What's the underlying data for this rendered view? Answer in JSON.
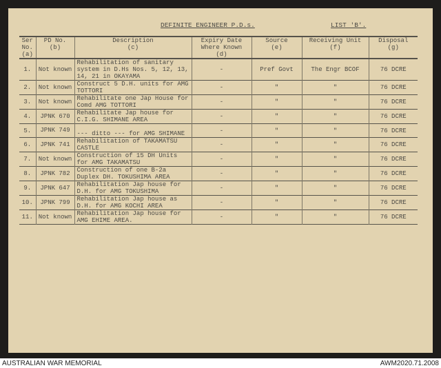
{
  "title": "DEFINITE ENGINEER P.D.s.",
  "list": "LIST 'B'.",
  "headers": [
    {
      "l1": "Ser No.",
      "l2": "(a)"
    },
    {
      "l1": "PD No.",
      "l2": "(b)"
    },
    {
      "l1": "Description",
      "l2": "(c)"
    },
    {
      "l1": "Expiry Date Where Known",
      "l2": "(d)"
    },
    {
      "l1": "Source",
      "l2": "(e)"
    },
    {
      "l1": "Receiving Unit",
      "l2": "(f)"
    },
    {
      "l1": "Disposal",
      "l2": "(g)"
    }
  ],
  "rows": [
    {
      "ser": "1.",
      "pd": "Not known",
      "desc": "Rehabilitation of sanitary system in D.Hs Nos. 5, 12, 13, 14, 21 in OKAYAMA",
      "exp": "-",
      "src": "Pref Govt",
      "unit": "The Engr BCOF",
      "disp": "76 DCRE"
    },
    {
      "ser": "2.",
      "pd": "Not known",
      "desc": "Construct 5 D.H. units for AMG TOTTORI",
      "exp": "-",
      "src": "\"",
      "unit": "\"",
      "disp": "76 DCRE"
    },
    {
      "ser": "3.",
      "pd": "Not known",
      "desc": "Rehabilitate one Jap House for Comd AMG TOTTORI",
      "exp": "-",
      "src": "\"",
      "unit": "\"",
      "disp": "76 DCRE"
    },
    {
      "ser": "4.",
      "pd": "JPNK 670",
      "desc": "Rehabilitate Jap house for C.I.G. SHIMANE AREA",
      "exp": "-",
      "src": "\"",
      "unit": "\"",
      "disp": "76 DCRE"
    },
    {
      "ser": "5.",
      "pd": "JPNK 749",
      "desc": "--- ditto --- for AMG SHIMANE",
      "exp": "-",
      "src": "\"",
      "unit": "\"",
      "disp": "76 DCRE"
    },
    {
      "ser": "6.",
      "pd": "JPNK 741",
      "desc": "Rehabilitation of TAKAMATSU CASTLE",
      "exp": "-",
      "src": "\"",
      "unit": "\"",
      "disp": "76 DCRE"
    },
    {
      "ser": "7.",
      "pd": "Not known",
      "desc": "Construction of 15 DH Units for AMG TAKAMATSU",
      "exp": "-",
      "src": "\"",
      "unit": "\"",
      "disp": "76 DCRE"
    },
    {
      "ser": "8.",
      "pd": "JPNK 782",
      "desc": "Construction of one B-2a Duplex DH. TOKUSHIMA AREA",
      "exp": "-",
      "src": "\"",
      "unit": "\"",
      "disp": "76 DCRE"
    },
    {
      "ser": "9.",
      "pd": "JPNK 647",
      "desc": "Rehabilitation Jap house for D.H. for AMG TOKUSHIMA",
      "exp": "-",
      "src": "\"",
      "unit": "\"",
      "disp": "76 DCRE"
    },
    {
      "ser": "10.",
      "pd": "JPNK 799",
      "desc": "Rehabilitation Jap house as D.H. for AMG KOCHI AREA",
      "exp": "-",
      "src": "\"",
      "unit": "\"",
      "disp": "76 DCRE"
    },
    {
      "ser": "11.",
      "pd": "Not known",
      "desc": "Rehabilitation Jap house for AMG EHIME AREA.",
      "exp": "-",
      "src": "\"",
      "unit": "\"",
      "disp": "76 DCRE"
    }
  ],
  "footer": {
    "left": "AUSTRALIAN WAR MEMORIAL",
    "right": "AWM2020.71.2008"
  }
}
